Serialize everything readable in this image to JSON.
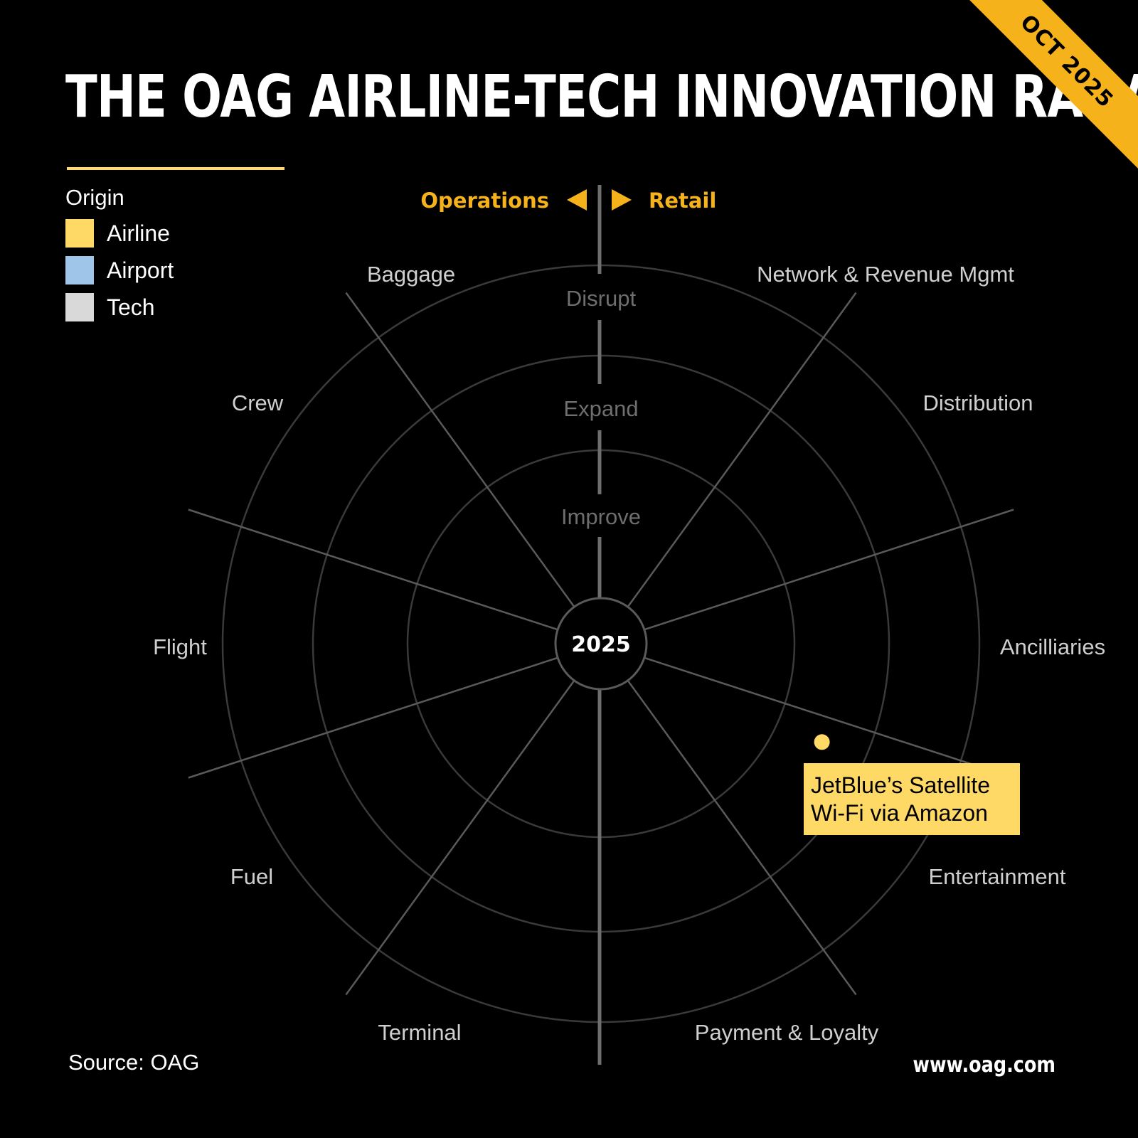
{
  "header": {
    "title": "THE OAG AIRLINE-TECH INNOVATION RADAR",
    "date_badge": "OCT 2025"
  },
  "legend": {
    "title": "Origin",
    "items": [
      {
        "label": "Airline",
        "color": "#ffd966"
      },
      {
        "label": "Airport",
        "color": "#9fc5e8"
      },
      {
        "label": "Tech",
        "color": "#d9d9d9"
      }
    ]
  },
  "footer": {
    "source": "Source: OAG",
    "website": "www.oag.com"
  },
  "chart_data": {
    "type": "scatter",
    "center_label": "2025",
    "axis_labels": {
      "left": "Operations",
      "right": "Retail"
    },
    "rings": [
      "Improve",
      "Expand",
      "Disrupt"
    ],
    "sectors": {
      "retail": [
        "Network & Revenue Mgmt",
        "Distribution",
        "Ancilliaries",
        "Entertainment",
        "Payment & Loyalty"
      ],
      "operations": [
        "Baggage",
        "Crew",
        "Flight",
        "Fuel",
        "Terminal"
      ]
    },
    "points": [
      {
        "label": "JetBlue’s Satellite Wi-Fi via Amazon",
        "origin": "Airline",
        "sector": "Entertainment",
        "ring": "Expand",
        "color": "#ffd966"
      }
    ]
  }
}
